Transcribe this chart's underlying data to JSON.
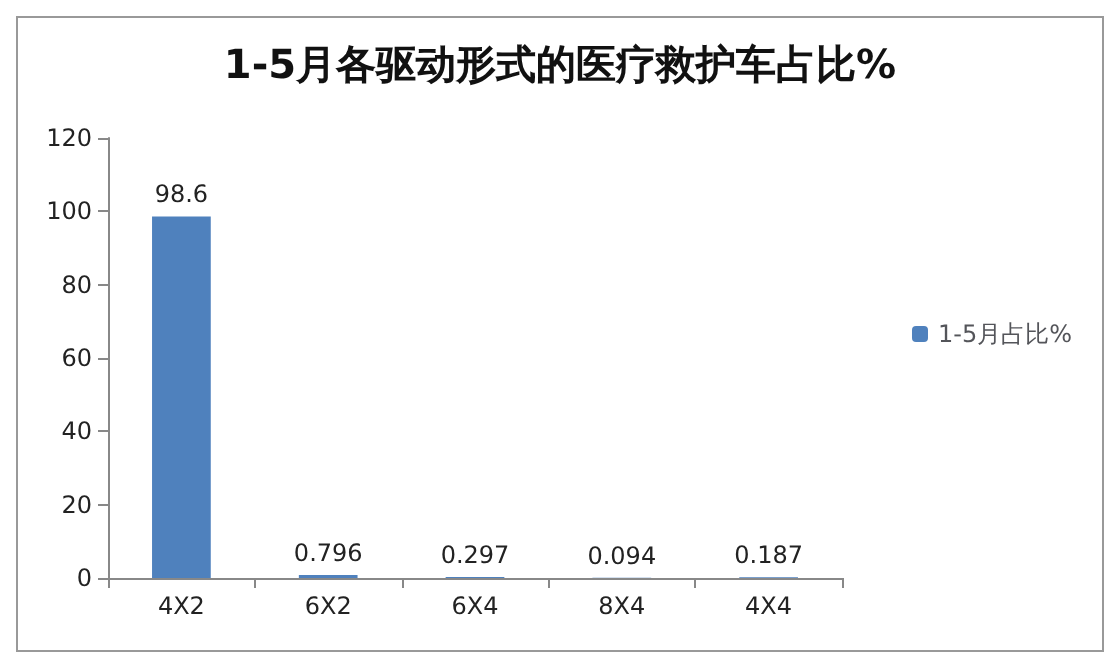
{
  "chart_data": {
    "type": "bar",
    "title": "1-5月各驱动形式的医疗救护车占比%",
    "categories": [
      "4X2",
      "6X2",
      "6X4",
      "8X4",
      "4X4"
    ],
    "series": [
      {
        "name": "1-5月占比%",
        "color": "#4f81bd",
        "values": [
          98.6,
          0.796,
          0.297,
          0.094,
          0.187
        ]
      }
    ],
    "ylim": [
      0,
      120
    ],
    "yticks": [
      0,
      20,
      40,
      60,
      80,
      100,
      120
    ],
    "grid": false,
    "legend": "right",
    "data_labels": true
  }
}
